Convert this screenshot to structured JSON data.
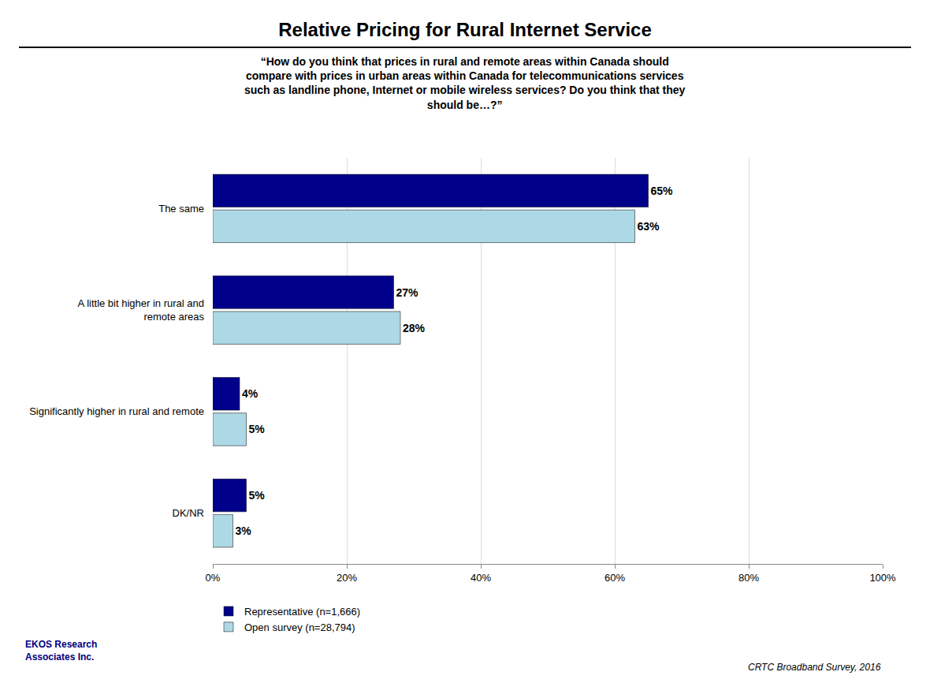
{
  "chart_data": {
    "type": "bar",
    "orientation": "horizontal",
    "title": "Relative Pricing for Rural Internet Service",
    "subtitle": "“How do you think that prices in rural and remote areas within Canada should\ncompare with prices in urban areas within Canada for telecommunications services\nsuch as landline phone, Internet or mobile wireless services? Do you think that they\nshould be…?”",
    "categories": [
      "The same",
      "A little bit higher in rural and\nremote areas",
      "Significantly higher in rural and remote",
      "DK/NR"
    ],
    "series": [
      {
        "name": "Representative (n=1,666)",
        "color": "#00008B",
        "values": [
          65,
          27,
          4,
          5
        ],
        "value_labels": [
          "65%",
          "27%",
          "4%",
          "5%"
        ]
      },
      {
        "name": "Open survey (n=28,794)",
        "color": "#ADD8E6",
        "values": [
          63,
          28,
          5,
          3
        ],
        "value_labels": [
          "63%",
          "28%",
          "5%",
          "3%"
        ]
      }
    ],
    "xlim": [
      0,
      100
    ],
    "xticks": [
      {
        "value": 0,
        "label": "0%"
      },
      {
        "value": 20,
        "label": "20%"
      },
      {
        "value": 40,
        "label": "40%"
      },
      {
        "value": 60,
        "label": "60%"
      },
      {
        "value": 80,
        "label": "80%"
      },
      {
        "value": 100,
        "label": "100%"
      }
    ],
    "grid": true,
    "data_labels": true,
    "legend": "lower left",
    "annotations": [
      "CRTC Broadband Survey, 2016",
      "EKOS Research\nAssociates Inc."
    ]
  }
}
